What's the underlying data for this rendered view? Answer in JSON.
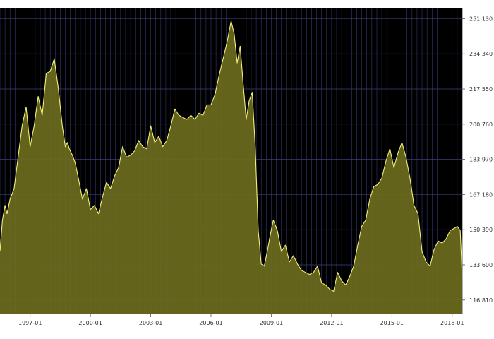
{
  "colors": {
    "plot_background": "#000000",
    "grid": "#3b3f78",
    "fill": "#6b6b1e",
    "line": "#f2f07a",
    "axis_text": "#333333"
  },
  "chart_data": {
    "type": "area",
    "title": "",
    "xlabel": "",
    "ylabel": "",
    "grid": true,
    "y_axis_side": "right",
    "xlim": [
      1995.5,
      2018.5
    ],
    "ylim": [
      110,
      256
    ],
    "x_ticks": [
      {
        "value": 1997.0,
        "label": "1997-01"
      },
      {
        "value": 2000.0,
        "label": "2000-01"
      },
      {
        "value": 2003.0,
        "label": "2003-01"
      },
      {
        "value": 2006.0,
        "label": "2006-01"
      },
      {
        "value": 2009.0,
        "label": "2009-01"
      },
      {
        "value": 2012.0,
        "label": "2012-01"
      },
      {
        "value": 2015.0,
        "label": "2015-01"
      },
      {
        "value": 2018.0,
        "label": "2018-01"
      }
    ],
    "y_ticks": [
      {
        "value": 116.81,
        "label": "116.810"
      },
      {
        "value": 133.6,
        "label": "133.600"
      },
      {
        "value": 150.39,
        "label": "150.390"
      },
      {
        "value": 167.18,
        "label": "167.180"
      },
      {
        "value": 183.97,
        "label": "183.970"
      },
      {
        "value": 200.76,
        "label": "200.760"
      },
      {
        "value": 217.55,
        "label": "217.550"
      },
      {
        "value": 234.34,
        "label": "234.340"
      },
      {
        "value": 251.13,
        "label": "251.130"
      }
    ],
    "series": [
      {
        "x": [
          1995.5,
          1995.62,
          1995.75,
          1995.85,
          1996.0,
          1996.2,
          1996.4,
          1996.6,
          1996.8,
          1997.0,
          1997.2,
          1997.4,
          1997.6,
          1997.8,
          1998.0,
          1998.2,
          1998.4,
          1998.6,
          1998.75,
          1998.85,
          1998.95,
          1999.1,
          1999.25,
          1999.4,
          1999.6,
          1999.8,
          2000.0,
          2000.2,
          2000.4,
          2000.6,
          2000.8,
          2001.0,
          2001.2,
          2001.4,
          2001.6,
          2001.8,
          2002.0,
          2002.2,
          2002.4,
          2002.6,
          2002.8,
          2003.0,
          2003.2,
          2003.4,
          2003.6,
          2003.8,
          2004.0,
          2004.2,
          2004.4,
          2004.6,
          2004.8,
          2005.0,
          2005.2,
          2005.4,
          2005.6,
          2005.8,
          2006.0,
          2006.2,
          2006.4,
          2006.6,
          2006.8,
          2007.0,
          2007.15,
          2007.3,
          2007.45,
          2007.6,
          2007.75,
          2007.9,
          2008.05,
          2008.2,
          2008.35,
          2008.5,
          2008.65,
          2008.8,
          2008.95,
          2009.1,
          2009.3,
          2009.5,
          2009.7,
          2009.9,
          2010.1,
          2010.3,
          2010.5,
          2010.7,
          2010.9,
          2011.1,
          2011.3,
          2011.5,
          2011.7,
          2011.9,
          2012.1,
          2012.3,
          2012.5,
          2012.7,
          2012.9,
          2013.1,
          2013.3,
          2013.5,
          2013.7,
          2013.9,
          2014.1,
          2014.3,
          2014.5,
          2014.7,
          2014.9,
          2015.1,
          2015.3,
          2015.5,
          2015.7,
          2015.9,
          2016.1,
          2016.3,
          2016.5,
          2016.7,
          2016.9,
          2017.1,
          2017.3,
          2017.5,
          2017.7,
          2017.9,
          2018.1,
          2018.25,
          2018.4,
          2018.5
        ],
        "values": [
          140,
          155,
          162,
          158,
          165,
          170,
          185,
          200,
          209,
          190,
          200,
          214,
          205,
          225,
          226,
          232,
          218,
          200,
          190,
          192,
          189,
          186,
          182,
          175,
          165,
          170,
          160,
          162,
          158,
          166,
          173,
          170,
          176,
          180,
          190,
          185,
          186,
          188,
          193,
          190,
          189,
          200,
          192,
          195,
          190,
          193,
          200,
          208,
          205,
          204,
          203,
          205,
          203,
          206,
          205,
          210,
          210,
          215,
          224,
          232,
          240,
          250,
          244,
          230,
          238,
          220,
          203,
          212,
          216,
          190,
          150,
          134,
          133,
          140,
          148,
          155,
          150,
          140,
          143,
          135,
          138,
          134,
          131,
          130,
          129,
          130,
          133,
          125,
          124,
          122,
          121,
          130,
          126,
          124,
          128,
          133,
          143,
          152,
          155,
          165,
          171,
          172,
          175,
          183,
          189,
          180,
          187,
          192,
          185,
          175,
          162,
          158,
          140,
          135,
          133,
          141,
          145,
          144,
          146,
          150,
          151,
          152,
          150,
          128
        ]
      }
    ]
  }
}
